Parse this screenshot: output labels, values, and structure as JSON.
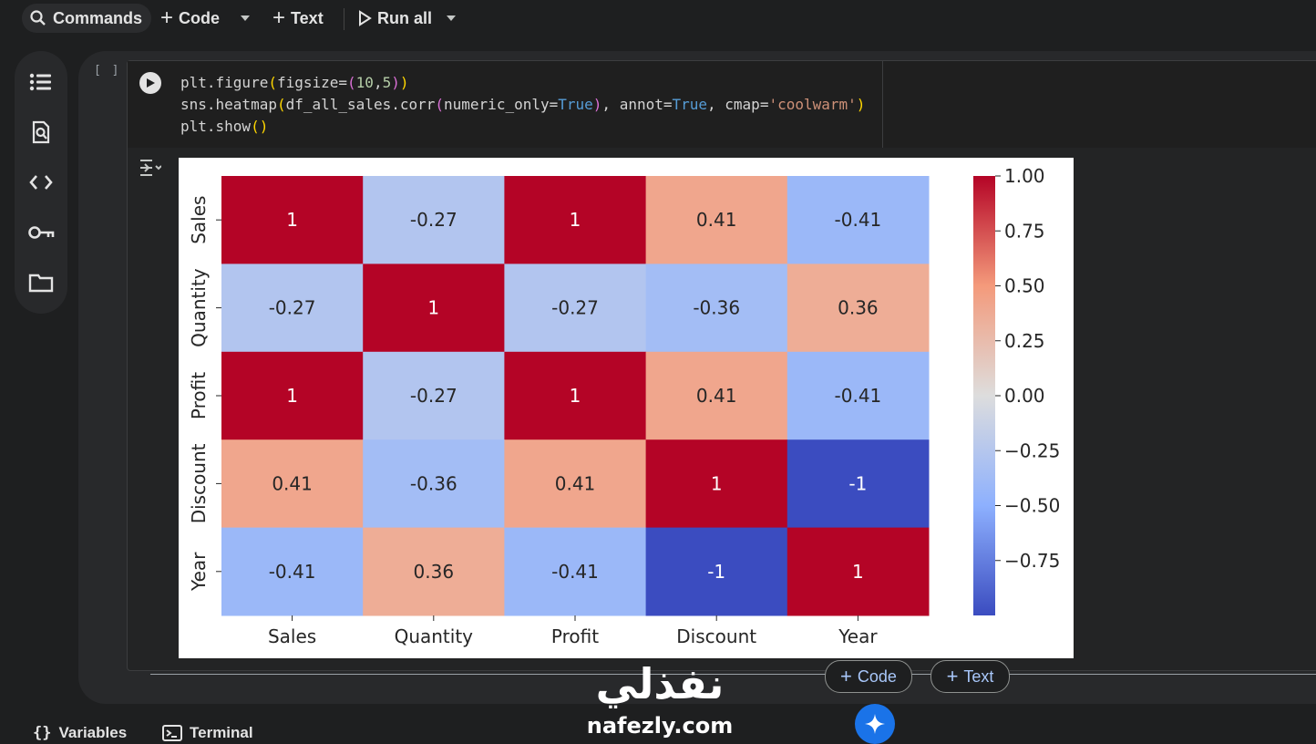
{
  "toolbar": {
    "commands_label": "Commands",
    "code_label": "Code",
    "text_label": "Text",
    "run_all_label": "Run all"
  },
  "sidebar": {
    "items": [
      "table-of-contents-icon",
      "find-icon",
      "code-snippets-icon",
      "secrets-key-icon",
      "files-folder-icon"
    ]
  },
  "cell": {
    "bracket": "[ ]",
    "code_lines": [
      "plt.figure(figsize=(10,5))",
      "sns.heatmap(df_all_sales.corr(numeric_only=True), annot=True, cmap='coolwarm')",
      "plt.show()"
    ]
  },
  "chart_data": {
    "type": "heatmap",
    "rows": [
      "Sales",
      "Quantity",
      "Profit",
      "Discount",
      "Year"
    ],
    "columns": [
      "Sales",
      "Quantity",
      "Profit",
      "Discount",
      "Year"
    ],
    "values": [
      [
        1,
        -0.27,
        1,
        0.41,
        -0.41
      ],
      [
        -0.27,
        1,
        -0.27,
        -0.36,
        0.36
      ],
      [
        1,
        -0.27,
        1,
        0.41,
        -0.41
      ],
      [
        0.41,
        -0.36,
        0.41,
        1,
        -1
      ],
      [
        -0.41,
        0.36,
        -0.41,
        -1,
        1
      ]
    ],
    "annotations": [
      [
        "1",
        "-0.27",
        "1",
        "0.41",
        "-0.41"
      ],
      [
        "-0.27",
        "1",
        "-0.27",
        "-0.36",
        "0.36"
      ],
      [
        "1",
        "-0.27",
        "1",
        "0.41",
        "-0.41"
      ],
      [
        "0.41",
        "-0.36",
        "0.41",
        "1",
        "-1"
      ],
      [
        "-0.41",
        "0.36",
        "-0.41",
        "-1",
        "1"
      ]
    ],
    "colorbar": {
      "ticks": [
        1.0,
        0.75,
        0.5,
        0.25,
        0.0,
        -0.25,
        -0.5,
        -0.75
      ],
      "tick_labels": [
        "1.00",
        "0.75",
        "0.50",
        "0.25",
        "0.00",
        "−0.25",
        "−0.50",
        "−0.75"
      ],
      "range": [
        -1,
        1
      ]
    },
    "cmap": "coolwarm",
    "colors": {
      "low": "#3b4cc0",
      "mid": "#dddddd",
      "high": "#b40426"
    }
  },
  "add_cell": {
    "code_label": "Code",
    "text_label": "Text"
  },
  "watermark": {
    "arabic": "نفذلي",
    "domain": "nafezly.com"
  },
  "bottom_bar": {
    "variables_label": "Variables",
    "terminal_label": "Terminal"
  },
  "colors": {
    "background": "#1e1f20",
    "panel": "#28292b",
    "accent": "#a8c7fa",
    "gemini": "#1a73e8"
  }
}
